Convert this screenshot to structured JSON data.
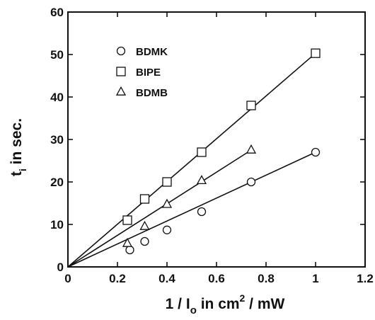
{
  "chart_data": {
    "type": "scatter",
    "xlabel": {
      "prefix": "1 / I",
      "sub": "o",
      "mid": " in cm",
      "sup": "2",
      "suffix": " / mW"
    },
    "ylabel": {
      "main": "t",
      "sub": "i",
      "suffix": " in sec."
    },
    "xlim": [
      0,
      1.2
    ],
    "ylim": [
      0,
      60
    ],
    "xticks": [
      0,
      0.2,
      0.4,
      0.6,
      0.8,
      1,
      1.2
    ],
    "yticks": [
      0,
      10,
      20,
      30,
      40,
      50,
      60
    ],
    "xtick_labels": [
      "0",
      "0.2",
      "0.4",
      "0.6",
      "0.8",
      "1",
      "1.2"
    ],
    "ytick_labels": [
      "0",
      "10",
      "20",
      "30",
      "40",
      "50",
      "60"
    ],
    "grid": false,
    "legend_position": "top-left",
    "series": [
      {
        "name": "BDMK",
        "marker": "circle",
        "points": [
          [
            0.25,
            4
          ],
          [
            0.31,
            6
          ],
          [
            0.4,
            8.7
          ],
          [
            0.54,
            13
          ],
          [
            0.74,
            20
          ],
          [
            1.0,
            27
          ]
        ],
        "fit_line": [
          [
            0,
            0
          ],
          [
            1.0,
            27
          ]
        ]
      },
      {
        "name": "BIPE",
        "marker": "square",
        "points": [
          [
            0.24,
            11
          ],
          [
            0.31,
            16
          ],
          [
            0.4,
            20
          ],
          [
            0.54,
            27
          ],
          [
            0.74,
            38
          ],
          [
            1.0,
            50.3
          ]
        ],
        "fit_line": [
          [
            0,
            0
          ],
          [
            1.0,
            50.3
          ]
        ]
      },
      {
        "name": "BDMB",
        "marker": "triangle",
        "points": [
          [
            0.24,
            5.5
          ],
          [
            0.31,
            9.5
          ],
          [
            0.4,
            14.7
          ],
          [
            0.54,
            20.3
          ],
          [
            0.74,
            27.5
          ]
        ],
        "fit_line": [
          [
            0,
            0
          ],
          [
            0.74,
            27.5
          ]
        ]
      }
    ]
  }
}
